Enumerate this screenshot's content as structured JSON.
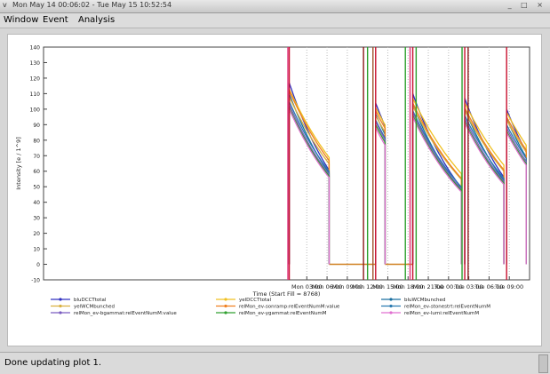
{
  "window": {
    "title": "Mon May 14 00:06:02 - Tue May 15 10:52:54",
    "menu_icon": "v",
    "controls": "_ □ ×"
  },
  "menubar": {
    "items": [
      "Window",
      "Event",
      "Analysis"
    ]
  },
  "status": {
    "message": "Done updating plot 1."
  },
  "chart_data": {
    "type": "line",
    "xlabel": "Time (Start Fill = 8768)",
    "ylabel": "Intensity [e / 1^9]",
    "xlim": [
      -36,
      36
    ],
    "ylim": [
      -10,
      140
    ],
    "yticks": [
      -10,
      0,
      10,
      20,
      30,
      40,
      50,
      60,
      70,
      80,
      90,
      100,
      110,
      120,
      130,
      140
    ],
    "xticks": [
      3,
      6,
      9,
      12,
      15,
      18,
      21,
      24,
      27,
      30,
      33
    ],
    "xtick_labels": [
      "Mon 03:00",
      "Mon 06:00",
      "Mon 09:00",
      "Mon 12:00",
      "Mon 15:00",
      "Mon 18:00",
      "Mon 21:00",
      "Tue 00:00",
      "Tue 03:00",
      "Tue 06:00",
      "Tue 09:00"
    ],
    "fills": [
      {
        "start": 0.4,
        "end": 6.3
      },
      {
        "start": 13.2,
        "end": 14.6
      },
      {
        "start": 18.7,
        "end": 25.9
      },
      {
        "start": 26.4,
        "end": 32.2
      },
      {
        "start": 32.6,
        "end": 35.5
      }
    ],
    "vertical_markers": [
      {
        "x": 0.2,
        "color": "#e0327a"
      },
      {
        "x": 0.4,
        "color": "#c8102e"
      },
      {
        "x": 11.4,
        "color": "#8b1a1a"
      },
      {
        "x": 12.0,
        "color": "#2ca02c"
      },
      {
        "x": 12.8,
        "color": "#a0522d"
      },
      {
        "x": 13.2,
        "color": "#c8102e"
      },
      {
        "x": 17.6,
        "color": "#2ca02c"
      },
      {
        "x": 18.3,
        "color": "#e0327a"
      },
      {
        "x": 18.7,
        "color": "#c8102e"
      },
      {
        "x": 19.2,
        "color": "#2ca02c"
      },
      {
        "x": 26.0,
        "color": "#2ca02c"
      },
      {
        "x": 26.4,
        "color": "#c8102e"
      },
      {
        "x": 26.9,
        "color": "#8b1a1a"
      },
      {
        "x": 32.6,
        "color": "#c8102e"
      }
    ],
    "series": [
      {
        "name": "bluDCCTtotal",
        "color": "#3030c0",
        "start": [
          0.5,
          117
        ],
        "end": [
          6.2,
          62
        ],
        "fill_starts": [
          117,
          104,
          110,
          107,
          100
        ]
      },
      {
        "name": "yelDCCTtotal",
        "color": "#f0c020",
        "start": [
          0.5,
          113
        ],
        "end": [
          6.2,
          70
        ],
        "fill_starts": [
          113,
          101,
          107,
          104,
          98
        ]
      },
      {
        "name": "bluWCMbunched",
        "color": "#1a6fa0",
        "start": [
          0.5,
          110
        ],
        "end": [
          6.2,
          60
        ],
        "fill_starts": [
          110,
          97,
          103,
          100,
          94
        ]
      },
      {
        "name": "yelWCMbunched",
        "color": "#d8b040",
        "start": [
          0.5,
          108
        ],
        "end": [
          6.2,
          66
        ],
        "fill_starts": [
          108,
          96,
          102,
          99,
          93
        ]
      },
      {
        "name": "relMon_ev-sonramp:relEventNumM:value",
        "color": "#f08020",
        "start": [
          0.5,
          112
        ],
        "end": [
          6.2,
          68
        ],
        "fill_starts": [
          112,
          99,
          104,
          101,
          95
        ]
      },
      {
        "name": "relMon_ev-stonestrt:relEventNumM",
        "color": "#2a7ab0",
        "start": [
          0.5,
          105
        ],
        "end": [
          6.2,
          61
        ],
        "fill_starts": [
          105,
          93,
          99,
          96,
          90
        ]
      },
      {
        "name": "relMon_ev-bgammat:relEventNumM:value",
        "color": "#7a5cc0",
        "start": [
          0.5,
          103
        ],
        "end": [
          6.2,
          59
        ],
        "fill_starts": [
          103,
          92,
          98,
          94,
          88
        ]
      },
      {
        "name": "relMon_ev-ygammat:relEventNumM",
        "color": "#30a030",
        "start": [
          0.5,
          101
        ],
        "end": [
          6.2,
          58
        ],
        "fill_starts": [
          101,
          90,
          96,
          92,
          86
        ]
      },
      {
        "name": "relMon_ev-lumi:relEventNumM",
        "color": "#e070d0",
        "start": [
          0.5,
          100
        ],
        "end": [
          6.2,
          57
        ],
        "fill_starts": [
          100,
          88,
          95,
          91,
          85
        ]
      }
    ]
  }
}
